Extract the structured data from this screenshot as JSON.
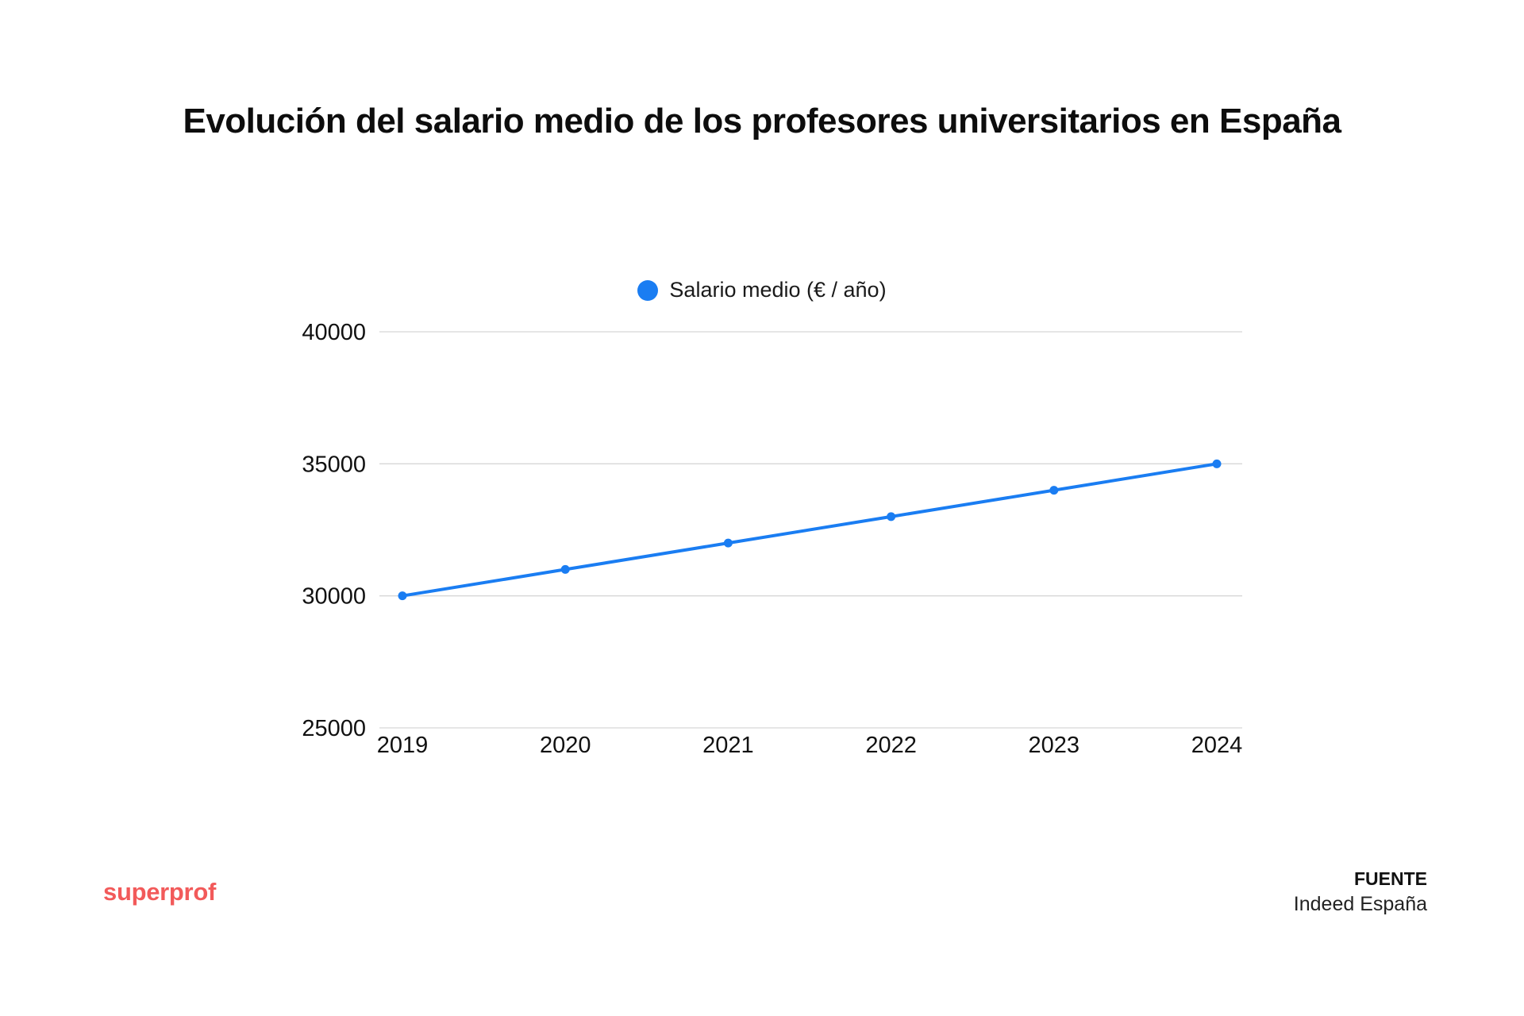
{
  "title": "Evolución del salario medio de los profesores universitarios en España",
  "brand": {
    "logo_text": "superprof",
    "color": "#f25a5a"
  },
  "source": {
    "heading": "FUENTE",
    "name": "Indeed España"
  },
  "colors": {
    "series": "#1a7df2",
    "grid": "#d6d6d6"
  },
  "chart_data": {
    "type": "line",
    "title": "Evolución del salario medio de los profesores universitarios en España",
    "xlabel": "",
    "ylabel": "",
    "legend_position": "top-center",
    "grid": true,
    "x": [
      2019,
      2020,
      2021,
      2022,
      2023,
      2024
    ],
    "categories": [
      "2019",
      "2020",
      "2021",
      "2022",
      "2023",
      "2024"
    ],
    "ylim": [
      25000,
      40000
    ],
    "yticks": [
      25000,
      30000,
      35000,
      40000
    ],
    "series": [
      {
        "name": "Salario medio (€ / año)",
        "values": [
          30000,
          31000,
          32000,
          33000,
          34000,
          35000
        ]
      }
    ]
  }
}
